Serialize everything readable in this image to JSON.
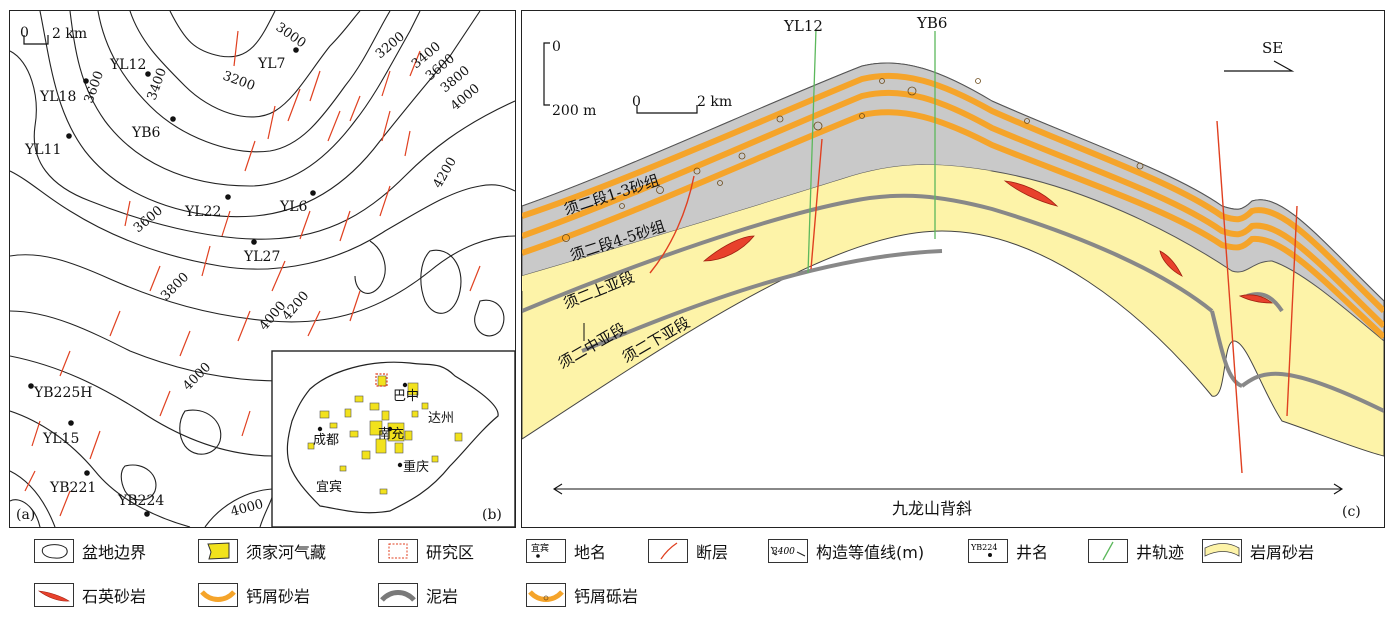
{
  "panel_a": {
    "label": "(a)",
    "scale": {
      "zero": "0",
      "value": "2 km"
    },
    "contour_labels": [
      "3000",
      "3200",
      "3400",
      "3600",
      "3800",
      "4000",
      "3600",
      "3400",
      "3200",
      "3600",
      "3800",
      "4000",
      "4200",
      "4200",
      "4000",
      "4000"
    ],
    "wells": [
      "YL12",
      "YL18",
      "YL7",
      "YB6",
      "YL11",
      "YL22",
      "YL6",
      "YL27",
      "YB225H",
      "YL15",
      "YB221",
      "YB224"
    ]
  },
  "panel_b": {
    "label": "(b)",
    "cities": [
      "巴中",
      "达州",
      "成都",
      "南充",
      "重庆",
      "宜宾"
    ]
  },
  "panel_c": {
    "label": "(c)",
    "wells": [
      "YL12",
      "YB6"
    ],
    "scale_v": {
      "top": "0",
      "bottom": "200 m"
    },
    "scale_h": {
      "zero": "0",
      "value": "2 km"
    },
    "direction": "SE",
    "units": [
      "须二段1-3砂组",
      "须二段4-5砂组",
      "须二上亚段",
      "须二中亚段",
      "须二下亚段"
    ],
    "anticline": "九龙山背斜"
  },
  "legend": [
    {
      "icon": "basin-boundary-icon",
      "label": "盆地边界"
    },
    {
      "icon": "gas-field-icon",
      "label": "须家河气藏"
    },
    {
      "icon": "study-area-icon",
      "label": "研究区"
    },
    {
      "icon": "place-name-icon",
      "label": "地名",
      "sample": "宜宾"
    },
    {
      "icon": "fault-icon",
      "label": "断层"
    },
    {
      "icon": "contour-icon",
      "label": "构造等值线(m)",
      "sample": "3400"
    },
    {
      "icon": "well-name-icon",
      "label": "井名",
      "sample": "YB224"
    },
    {
      "icon": "well-trajectory-icon",
      "label": "井轨迹"
    },
    {
      "icon": "lithic-sandstone-icon",
      "label": "岩屑砂岩"
    },
    {
      "icon": "quartz-sandstone-icon",
      "label": "石英砂岩"
    },
    {
      "icon": "calcarenite-icon",
      "label": "钙屑砂岩"
    },
    {
      "icon": "mudstone-icon",
      "label": "泥岩"
    },
    {
      "icon": "calcirudite-icon",
      "label": "钙屑砾岩"
    }
  ],
  "colors": {
    "lithic_sandstone": "#fdf3a8",
    "quartz_sandstone": "#e8412c",
    "calcarenite": "#f5a42a",
    "mudstone": "#8a8a8a",
    "mud_band": "#c9c9c9",
    "fault": "#e04020",
    "well": "#5cb85c",
    "contour": "#222222"
  }
}
